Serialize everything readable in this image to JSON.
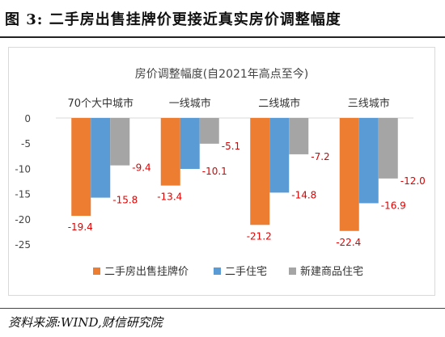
{
  "figure_title": "图 3:  二手房出售挂牌价更接近真实房价调整幅度",
  "source": "资料来源:WIND,财信研究院",
  "colors": {
    "series": [
      "#ED7D31",
      "#5B9BD5",
      "#A5A5A5"
    ],
    "value_labels": "#E00000",
    "axis_text": "#444444"
  },
  "chart_data": {
    "type": "bar",
    "title": "房价调整幅度(自2021年高点至今)",
    "categories": [
      "70个大中城市",
      "一线城市",
      "二线城市",
      "三线城市"
    ],
    "series": [
      {
        "name": "二手房出售挂牌价",
        "values": [
          -19.4,
          -13.4,
          -21.2,
          -22.4
        ],
        "labels": [
          "-19.4",
          "-13.4",
          "-21.2",
          "-22.4"
        ]
      },
      {
        "name": "二手住宅",
        "values": [
          -15.8,
          -10.1,
          -14.8,
          -16.9
        ],
        "labels": [
          "-15.8",
          "-10.1",
          "-14.8",
          "-16.9"
        ]
      },
      {
        "name": "新建商品住宅",
        "values": [
          -9.4,
          -5.1,
          -7.2,
          -12.0
        ],
        "labels": [
          "-9.4",
          "-5.1",
          "-7.2",
          "-12.0"
        ]
      }
    ],
    "yticks": [
      "0",
      "-5",
      "-10",
      "-15",
      "-20",
      "-25"
    ],
    "ylim": [
      -25,
      0
    ],
    "xlabel": "",
    "ylabel": "",
    "grid": false,
    "legend_position": "bottom"
  }
}
